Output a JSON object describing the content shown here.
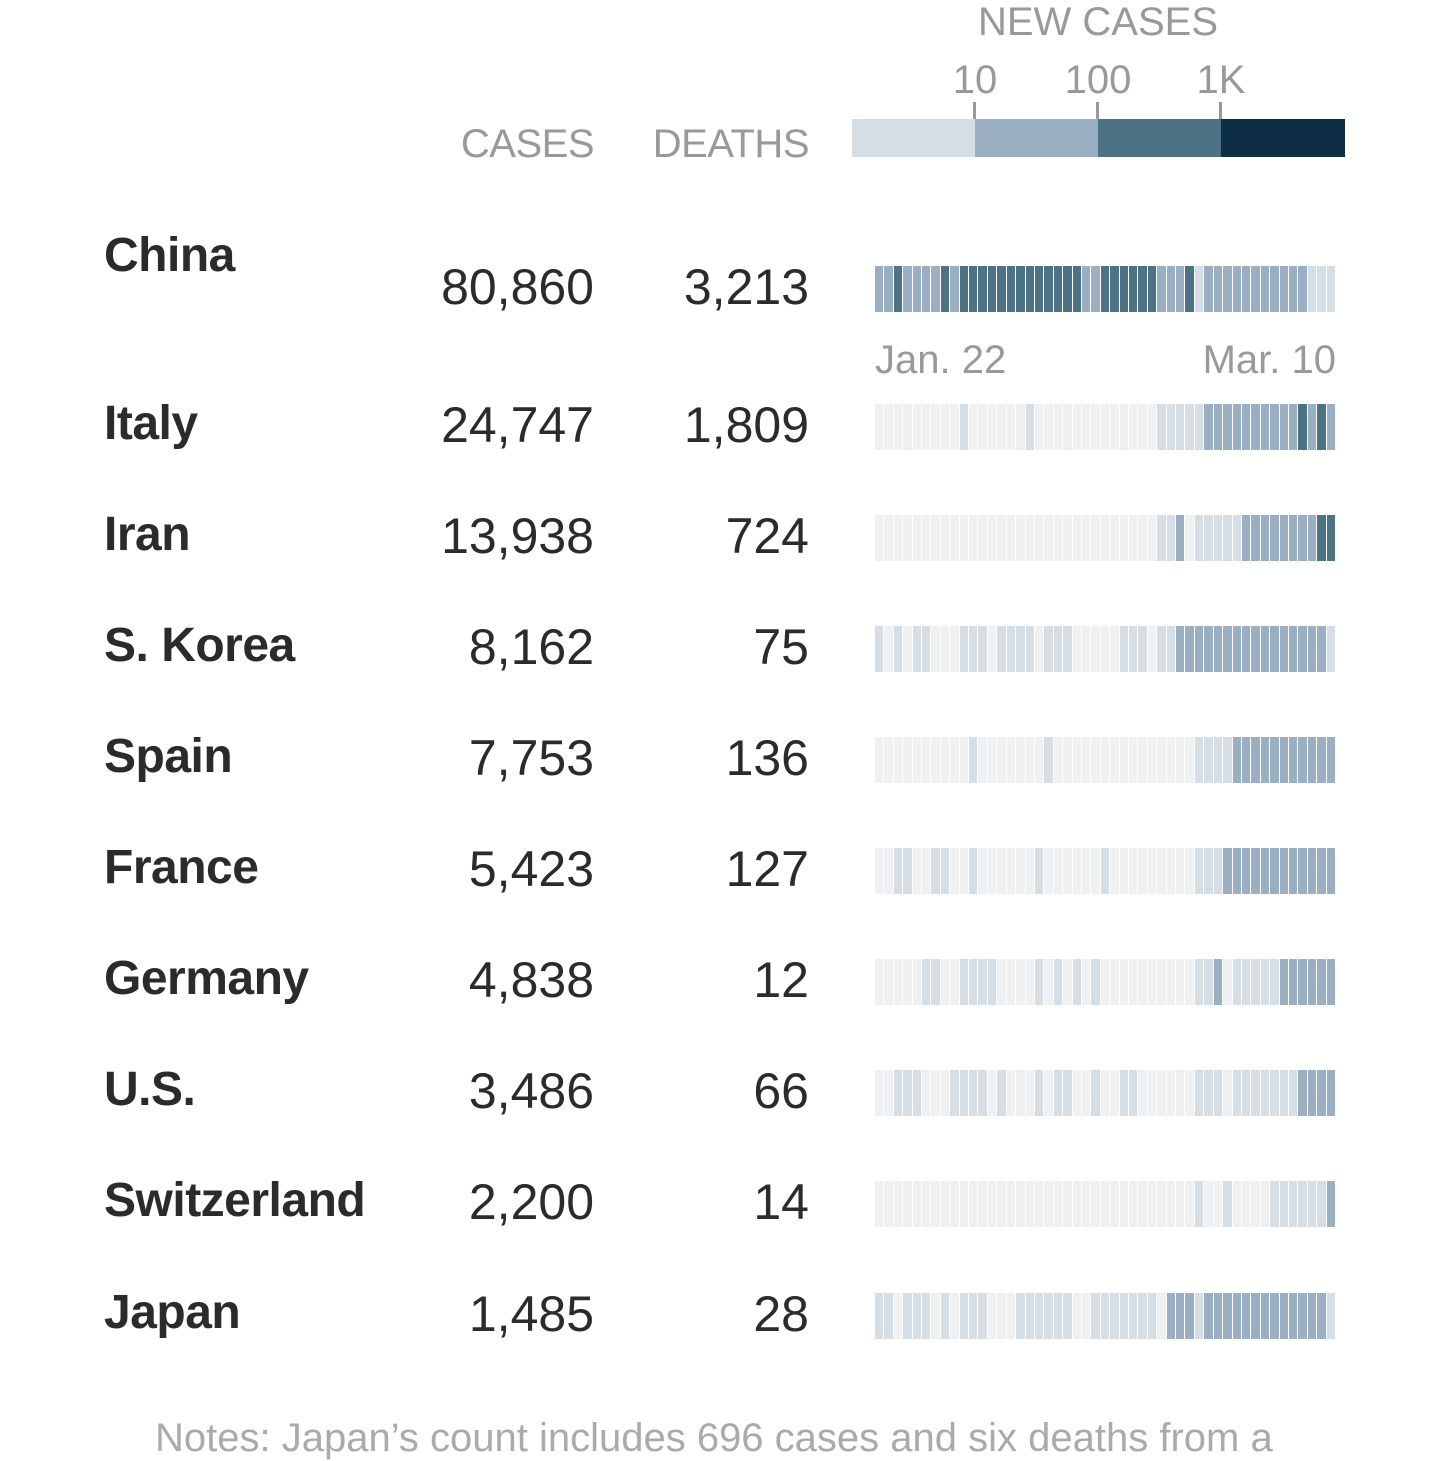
{
  "chart_data": {
    "type": "heatmap",
    "headers": {
      "cases": "CASES",
      "deaths": "DEATHS"
    },
    "legend": {
      "title": "NEW CASES",
      "ticks": [
        "10",
        "100",
        "1K"
      ],
      "colors": [
        "#d5dde5",
        "#9aafc2",
        "#4d7185",
        "#0d2e45"
      ]
    },
    "empty_color": "#eef0f1",
    "axis": {
      "start": "Jan. 22",
      "end": "Mar. 10"
    },
    "days": 49,
    "rows": [
      {
        "country": "China",
        "cases": "80,860",
        "deaths": "3,213",
        "levels": [
          2,
          2,
          3,
          2,
          2,
          2,
          2,
          3,
          2,
          3,
          3,
          3,
          3,
          3,
          3,
          3,
          3,
          3,
          3,
          3,
          3,
          3,
          2,
          2,
          3,
          3,
          3,
          3,
          3,
          3,
          2,
          2,
          2,
          3,
          1,
          2,
          2,
          2,
          2,
          2,
          2,
          2,
          2,
          2,
          2,
          2,
          1,
          1,
          1
        ]
      },
      {
        "country": "Italy",
        "cases": "24,747",
        "deaths": "1,809",
        "levels": [
          0,
          0,
          0,
          0,
          0,
          0,
          0,
          0,
          0,
          1,
          0,
          0,
          0,
          0,
          0,
          0,
          1,
          0,
          0,
          0,
          0,
          0,
          0,
          0,
          0,
          0,
          0,
          0,
          0,
          0,
          1,
          1,
          1,
          1,
          1,
          2,
          2,
          2,
          2,
          2,
          2,
          2,
          2,
          2,
          2,
          3,
          2,
          3,
          2
        ]
      },
      {
        "country": "Iran",
        "cases": "13,938",
        "deaths": "724",
        "levels": [
          0,
          0,
          0,
          0,
          0,
          0,
          0,
          0,
          0,
          0,
          0,
          0,
          0,
          0,
          0,
          0,
          0,
          0,
          0,
          0,
          0,
          0,
          0,
          0,
          0,
          0,
          0,
          0,
          0,
          0,
          1,
          1,
          2,
          0,
          1,
          1,
          1,
          1,
          1,
          2,
          2,
          2,
          2,
          2,
          2,
          2,
          2,
          3,
          3
        ]
      },
      {
        "country": "S. Korea",
        "cases": "8,162",
        "deaths": "75",
        "levels": [
          1,
          0,
          1,
          0,
          1,
          1,
          0,
          0,
          0,
          1,
          1,
          1,
          0,
          1,
          1,
          1,
          1,
          0,
          1,
          1,
          1,
          0,
          0,
          0,
          0,
          0,
          1,
          1,
          1,
          0,
          1,
          1,
          2,
          2,
          2,
          2,
          2,
          2,
          2,
          2,
          2,
          2,
          2,
          2,
          2,
          2,
          2,
          2,
          1
        ]
      },
      {
        "country": "Spain",
        "cases": "7,753",
        "deaths": "136",
        "levels": [
          0,
          0,
          0,
          0,
          0,
          0,
          0,
          0,
          0,
          0,
          1,
          0,
          0,
          0,
          0,
          0,
          0,
          0,
          1,
          0,
          0,
          0,
          0,
          0,
          0,
          0,
          0,
          0,
          0,
          0,
          0,
          0,
          0,
          0,
          1,
          1,
          1,
          1,
          2,
          2,
          2,
          2,
          2,
          2,
          2,
          2,
          2,
          2,
          2
        ]
      },
      {
        "country": "France",
        "cases": "5,423",
        "deaths": "127",
        "levels": [
          0,
          0,
          1,
          1,
          0,
          0,
          1,
          1,
          0,
          0,
          1,
          0,
          0,
          0,
          0,
          0,
          0,
          1,
          0,
          0,
          0,
          0,
          0,
          0,
          1,
          0,
          0,
          0,
          0,
          0,
          0,
          0,
          0,
          0,
          1,
          1,
          1,
          2,
          2,
          2,
          2,
          2,
          2,
          2,
          2,
          2,
          2,
          2,
          2
        ]
      },
      {
        "country": "Germany",
        "cases": "4,838",
        "deaths": "12",
        "levels": [
          0,
          0,
          0,
          0,
          0,
          1,
          1,
          0,
          0,
          1,
          1,
          1,
          1,
          0,
          0,
          0,
          0,
          1,
          0,
          1,
          0,
          1,
          0,
          1,
          0,
          0,
          0,
          0,
          0,
          0,
          0,
          0,
          0,
          0,
          1,
          1,
          2,
          0,
          1,
          1,
          1,
          1,
          1,
          2,
          2,
          2,
          2,
          2,
          2
        ]
      },
      {
        "country": "U.S.",
        "cases": "3,486",
        "deaths": "66",
        "levels": [
          0,
          0,
          1,
          1,
          1,
          0,
          0,
          0,
          1,
          1,
          1,
          1,
          0,
          1,
          0,
          0,
          0,
          1,
          0,
          1,
          1,
          0,
          0,
          1,
          0,
          0,
          1,
          1,
          0,
          0,
          0,
          0,
          0,
          0,
          1,
          1,
          1,
          0,
          1,
          1,
          1,
          1,
          1,
          1,
          1,
          2,
          2,
          2,
          2
        ]
      },
      {
        "country": "Switzerland",
        "cases": "2,200",
        "deaths": "14",
        "levels": [
          0,
          0,
          0,
          0,
          0,
          0,
          0,
          0,
          0,
          0,
          0,
          0,
          0,
          0,
          0,
          0,
          0,
          0,
          0,
          0,
          0,
          0,
          0,
          0,
          0,
          0,
          0,
          0,
          0,
          0,
          0,
          0,
          0,
          0,
          1,
          0,
          0,
          1,
          0,
          0,
          0,
          0,
          1,
          1,
          1,
          1,
          1,
          1,
          2
        ]
      },
      {
        "country": "Japan",
        "cases": "1,485",
        "deaths": "28",
        "levels": [
          1,
          1,
          0,
          1,
          1,
          1,
          0,
          1,
          0,
          1,
          1,
          1,
          0,
          0,
          0,
          1,
          1,
          1,
          1,
          1,
          1,
          0,
          0,
          1,
          1,
          1,
          1,
          1,
          1,
          1,
          0,
          2,
          2,
          2,
          1,
          2,
          2,
          2,
          2,
          2,
          2,
          2,
          2,
          2,
          2,
          2,
          2,
          2,
          1
        ]
      }
    ]
  },
  "note": "Notes: Japan’s count includes 696 cases and six deaths from a"
}
